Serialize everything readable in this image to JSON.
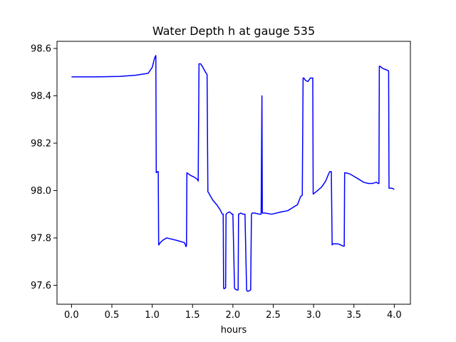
{
  "chart_data": {
    "type": "line",
    "title": "Water Depth h at gauge 535",
    "xlabel": "hours",
    "ylabel": "",
    "xlim": [
      -0.18,
      4.2
    ],
    "ylim": [
      97.52,
      98.63
    ],
    "grid": false,
    "line_color": "#0000ff",
    "xticks": [
      {
        "value": 0.0,
        "label": "0.0"
      },
      {
        "value": 0.5,
        "label": "0.5"
      },
      {
        "value": 1.0,
        "label": "1.0"
      },
      {
        "value": 1.5,
        "label": "1.5"
      },
      {
        "value": 2.0,
        "label": "2.0"
      },
      {
        "value": 2.5,
        "label": "2.5"
      },
      {
        "value": 3.0,
        "label": "3.0"
      },
      {
        "value": 3.5,
        "label": "3.5"
      },
      {
        "value": 4.0,
        "label": "4.0"
      }
    ],
    "yticks": [
      {
        "value": 97.6,
        "label": "97.6"
      },
      {
        "value": 97.8,
        "label": "97.8"
      },
      {
        "value": 98.0,
        "label": "98.0"
      },
      {
        "value": 98.2,
        "label": "98.2"
      },
      {
        "value": 98.4,
        "label": "98.4"
      },
      {
        "value": 98.6,
        "label": "98.6"
      }
    ],
    "series": [
      {
        "x": [
          0.0,
          0.3,
          0.6,
          0.8,
          0.95,
          1.0,
          1.03,
          1.045,
          1.05,
          1.065,
          1.075,
          1.08,
          1.1,
          1.13,
          1.18,
          1.3,
          1.4,
          1.42,
          1.425,
          1.43,
          1.47,
          1.53,
          1.565,
          1.57,
          1.58,
          1.6,
          1.62,
          1.66,
          1.68,
          1.69,
          1.7,
          1.75,
          1.8,
          1.84,
          1.87,
          1.88,
          1.885,
          1.89,
          1.91,
          1.915,
          1.93,
          1.96,
          1.99,
          2.0,
          2.02,
          2.025,
          2.05,
          2.065,
          2.07,
          2.1,
          2.125,
          2.15,
          2.17,
          2.18,
          2.19,
          2.22,
          2.23,
          2.24,
          2.27,
          2.33,
          2.35,
          2.36,
          2.365,
          2.4,
          2.48,
          2.6,
          2.68,
          2.75,
          2.8,
          2.84,
          2.86,
          2.87,
          2.88,
          2.9,
          2.93,
          2.96,
          2.99,
          2.995,
          3.05,
          3.1,
          3.15,
          3.18,
          3.2,
          3.22,
          3.23,
          3.24,
          3.3,
          3.34,
          3.37,
          3.38,
          3.385,
          3.4,
          3.45,
          3.5,
          3.55,
          3.62,
          3.68,
          3.73,
          3.78,
          3.8,
          3.81,
          3.815,
          3.82,
          3.86,
          3.9,
          3.93,
          3.935,
          3.95,
          3.97,
          4.0
        ],
        "y": [
          98.48,
          98.48,
          98.482,
          98.487,
          98.495,
          98.52,
          98.56,
          98.57,
          98.075,
          98.08,
          98.08,
          97.77,
          97.78,
          97.79,
          97.8,
          97.79,
          97.78,
          97.763,
          97.77,
          98.075,
          98.065,
          98.055,
          98.045,
          98.04,
          98.535,
          98.535,
          98.525,
          98.5,
          98.49,
          97.995,
          97.99,
          97.96,
          97.94,
          97.92,
          97.9,
          97.9,
          97.59,
          97.585,
          97.59,
          97.9,
          97.905,
          97.91,
          97.9,
          97.9,
          97.59,
          97.585,
          97.58,
          97.58,
          97.9,
          97.905,
          97.9,
          97.9,
          97.58,
          97.575,
          97.575,
          97.58,
          97.9,
          97.905,
          97.905,
          97.9,
          97.9,
          98.4,
          97.905,
          97.905,
          97.9,
          97.91,
          97.915,
          97.93,
          97.94,
          97.975,
          97.98,
          98.475,
          98.475,
          98.465,
          98.46,
          98.475,
          98.475,
          97.985,
          98.0,
          98.015,
          98.04,
          98.065,
          98.08,
          98.08,
          97.77,
          97.775,
          97.775,
          97.77,
          97.765,
          97.765,
          98.075,
          98.075,
          98.07,
          98.06,
          98.05,
          98.035,
          98.03,
          98.03,
          98.035,
          98.03,
          98.03,
          98.525,
          98.525,
          98.515,
          98.51,
          98.505,
          98.01,
          98.01,
          98.01,
          98.005
        ]
      }
    ]
  }
}
